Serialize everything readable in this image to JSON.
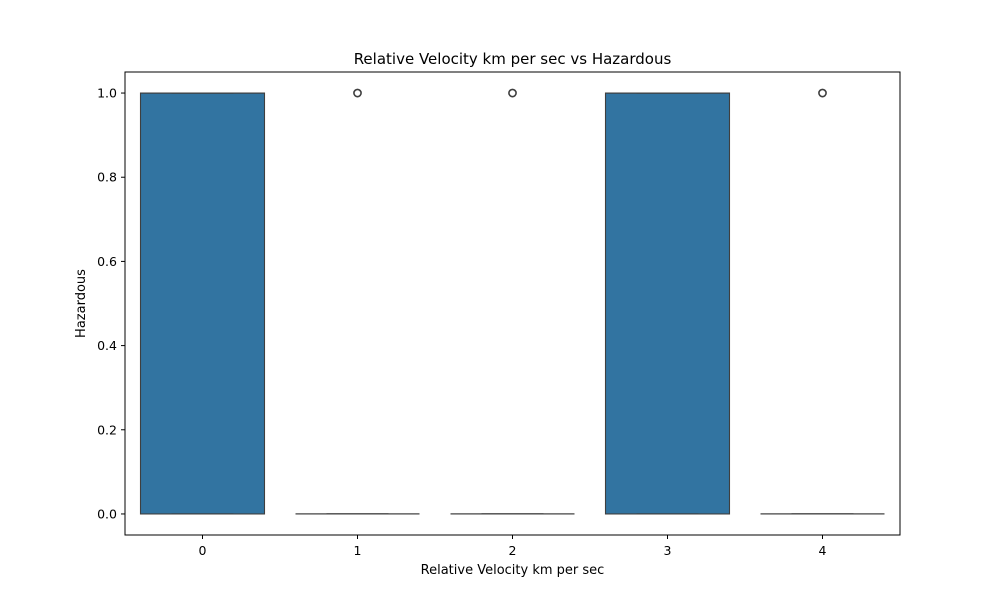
{
  "chart_data": {
    "type": "box",
    "title": "Relative Velocity km per sec vs Hazardous",
    "xlabel": "Relative Velocity km per sec",
    "ylabel": "Hazardous",
    "categories": [
      "0",
      "1",
      "2",
      "3",
      "4"
    ],
    "ylim": [
      -0.05,
      1.05
    ],
    "yticks": [
      0.0,
      0.2,
      0.4,
      0.6,
      0.8,
      1.0
    ],
    "ytick_labels": [
      "0.0",
      "0.2",
      "0.4",
      "0.6",
      "0.8",
      "1.0"
    ],
    "boxes": [
      {
        "category": "0",
        "q1": 0,
        "median": 1,
        "q3": 1,
        "whisker_low": 0,
        "whisker_high": 1,
        "outliers": []
      },
      {
        "category": "1",
        "q1": 0,
        "median": 0,
        "q3": 0,
        "whisker_low": 0,
        "whisker_high": 0,
        "outliers": [
          1
        ]
      },
      {
        "category": "2",
        "q1": 0,
        "median": 0,
        "q3": 0,
        "whisker_low": 0,
        "whisker_high": 0,
        "outliers": [
          1
        ]
      },
      {
        "category": "3",
        "q1": 0,
        "median": 1,
        "q3": 1,
        "whisker_low": 0,
        "whisker_high": 1,
        "outliers": []
      },
      {
        "category": "4",
        "q1": 0,
        "median": 0,
        "q3": 0,
        "whisker_low": 0,
        "whisker_high": 0,
        "outliers": [
          1
        ]
      }
    ],
    "box_color": "#3274a1",
    "line_color": "#3f3f3f",
    "grid": false
  }
}
